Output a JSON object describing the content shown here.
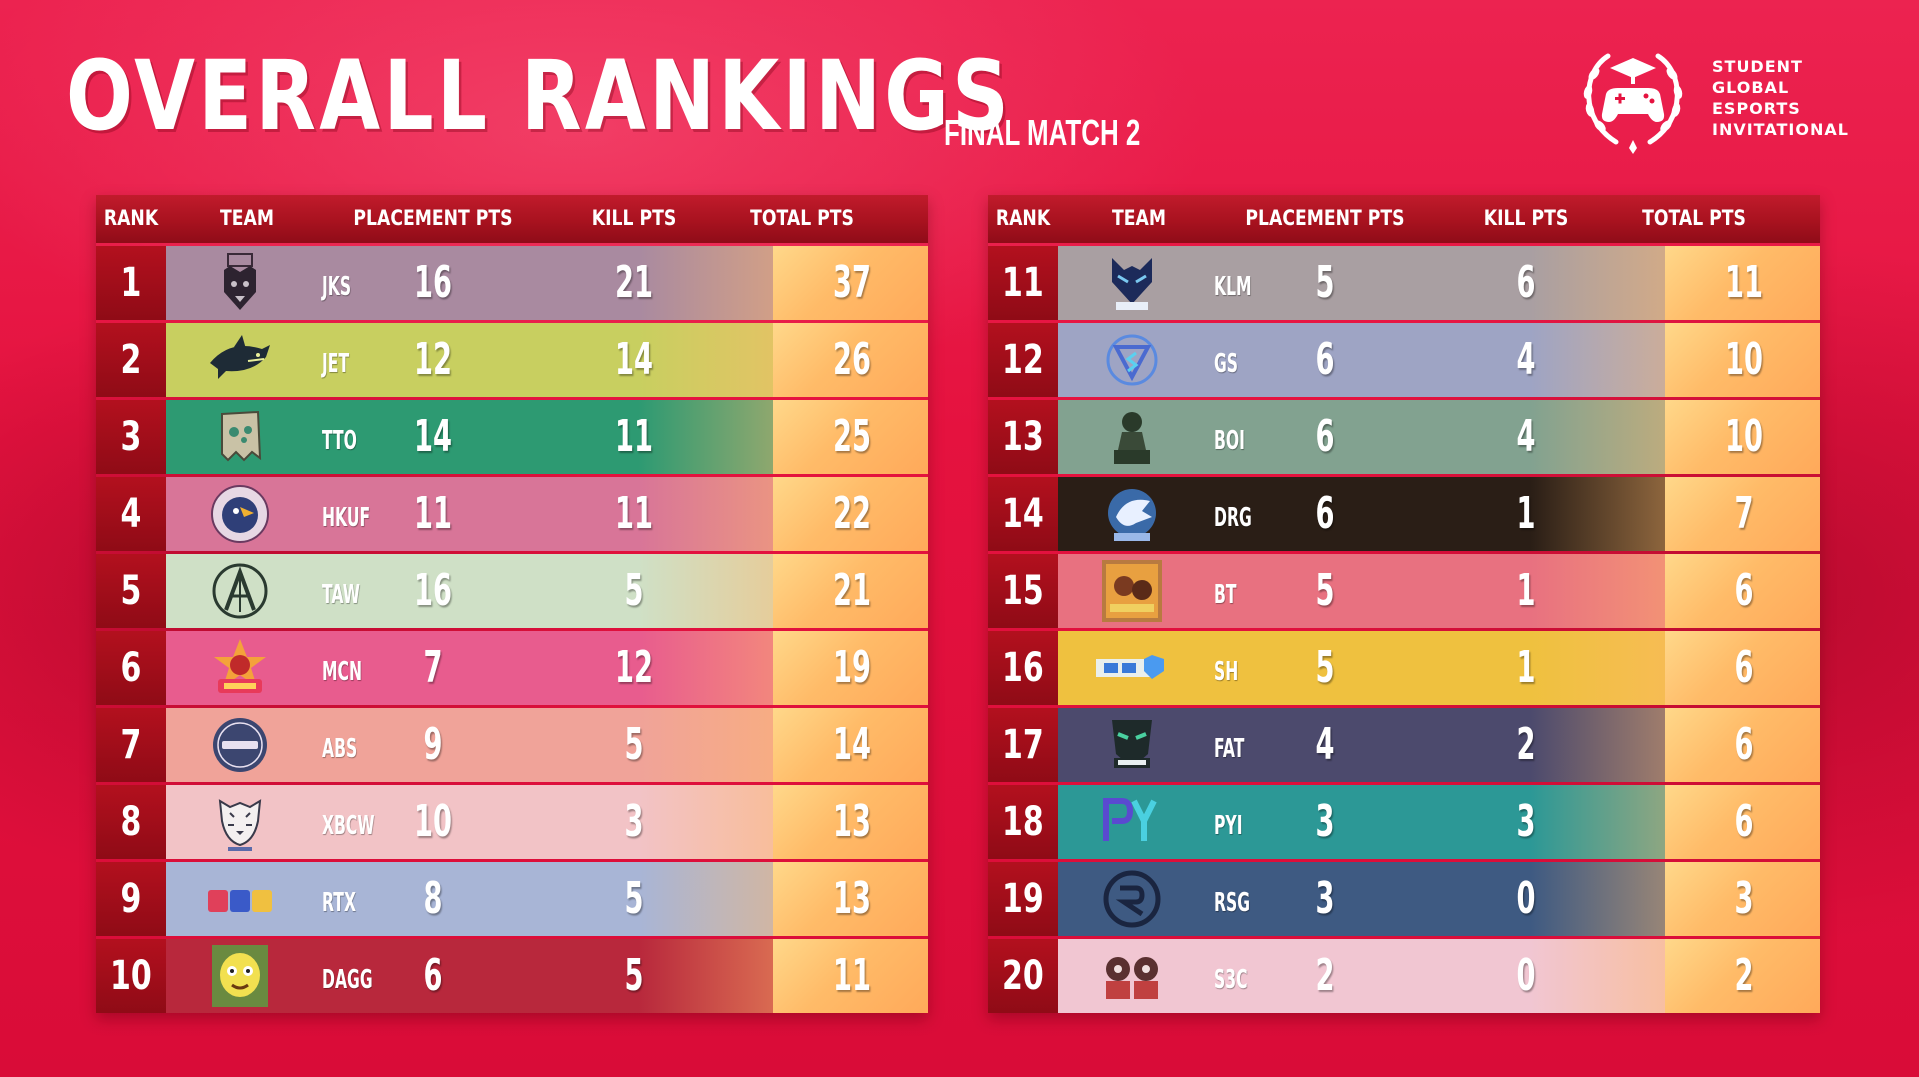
{
  "header": {
    "title": "OVERALL RANKINGS",
    "subtitle": "FINAL MATCH 2"
  },
  "logo": {
    "line1": "STUDENT",
    "line2": "GLOBAL",
    "line3": "ESPORTS",
    "line4": "INVITATIONAL"
  },
  "columns": {
    "rank": "RANK",
    "team": "TEAM",
    "placement": "PLACEMENT PTS",
    "kill": "KILL PTS",
    "total": "TOTAL PTS"
  },
  "colors": {
    "background": "#e5123f",
    "rank_cell": "#a8121f",
    "total_cell": "#ffbb68"
  },
  "standings": [
    {
      "rank": "1",
      "team": "JKS",
      "placement": "16",
      "kill": "21",
      "total": "37",
      "row_color": "#a98aa0",
      "logo_icon": "wolf-face-icon"
    },
    {
      "rank": "2",
      "team": "JET",
      "placement": "12",
      "kill": "14",
      "total": "26",
      "row_color": "#c8cf60",
      "logo_icon": "shark-icon"
    },
    {
      "rank": "3",
      "team": "TTO",
      "placement": "14",
      "kill": "11",
      "total": "25",
      "row_color": "#2d9a72",
      "logo_icon": "ghost-bag-icon"
    },
    {
      "rank": "4",
      "team": "HKUF",
      "placement": "11",
      "kill": "11",
      "total": "22",
      "row_color": "#d87598",
      "logo_icon": "falcon-badge-icon"
    },
    {
      "rank": "5",
      "team": "TAW",
      "placement": "16",
      "kill": "5",
      "total": "21",
      "row_color": "#cfe0c6",
      "logo_icon": "circle-a-icon"
    },
    {
      "rank": "6",
      "team": "MCN",
      "placement": "7",
      "kill": "12",
      "total": "19",
      "row_color": "#e85c8e",
      "logo_icon": "star-mascot-icon"
    },
    {
      "rank": "7",
      "team": "ABS",
      "placement": "9",
      "kill": "5",
      "total": "14",
      "row_color": "#f0a399",
      "logo_icon": "dagg-circle-icon"
    },
    {
      "rank": "8",
      "team": "XBCW",
      "placement": "10",
      "kill": "3",
      "total": "13",
      "row_color": "#f2c3c6",
      "logo_icon": "tiger-icon"
    },
    {
      "rank": "9",
      "team": "RTX",
      "placement": "8",
      "kill": "5",
      "total": "13",
      "row_color": "#a8b5d6",
      "logo_icon": "nbn-letters-icon"
    },
    {
      "rank": "10",
      "team": "DAGG",
      "placement": "6",
      "kill": "5",
      "total": "11",
      "row_color": "#b8283c",
      "logo_icon": "cartoon-face-icon"
    },
    {
      "rank": "11",
      "team": "KLM",
      "placement": "5",
      "kill": "6",
      "total": "11",
      "row_color": "#a99fa2",
      "logo_icon": "wolf-head-icon"
    },
    {
      "rank": "12",
      "team": "GS",
      "placement": "6",
      "kill": "4",
      "total": "10",
      "row_color": "#9ea4c4",
      "logo_icon": "triangle-s-icon"
    },
    {
      "rank": "13",
      "team": "BOI",
      "placement": "6",
      "kill": "4",
      "total": "10",
      "row_color": "#82a290",
      "logo_icon": "soldier-icon"
    },
    {
      "rank": "14",
      "team": "DRG",
      "placement": "6",
      "kill": "1",
      "total": "7",
      "row_color": "#2a1e16",
      "logo_icon": "dragon-icon"
    },
    {
      "rank": "15",
      "team": "BT",
      "placement": "5",
      "kill": "1",
      "total": "6",
      "row_color": "#e87180",
      "logo_icon": "character-tile-icon"
    },
    {
      "rank": "16",
      "team": "SH",
      "placement": "5",
      "kill": "1",
      "total": "6",
      "row_color": "#efc13f",
      "logo_icon": "rtx-shield-icon"
    },
    {
      "rank": "17",
      "team": "FAT",
      "placement": "4",
      "kill": "2",
      "total": "6",
      "row_color": "#4c4a6d",
      "logo_icon": "mask-icon"
    },
    {
      "rank": "18",
      "team": "PYI",
      "placement": "3",
      "kill": "3",
      "total": "6",
      "row_color": "#2c9896",
      "logo_icon": "py-letters-icon"
    },
    {
      "rank": "19",
      "team": "RSG",
      "placement": "3",
      "kill": "0",
      "total": "3",
      "row_color": "#3e5a82",
      "logo_icon": "rsg-monogram-icon"
    },
    {
      "rank": "20",
      "team": "S3C",
      "placement": "2",
      "kill": "0",
      "total": "2",
      "row_color": "#f1c6d2",
      "logo_icon": "twin-faces-icon"
    }
  ]
}
